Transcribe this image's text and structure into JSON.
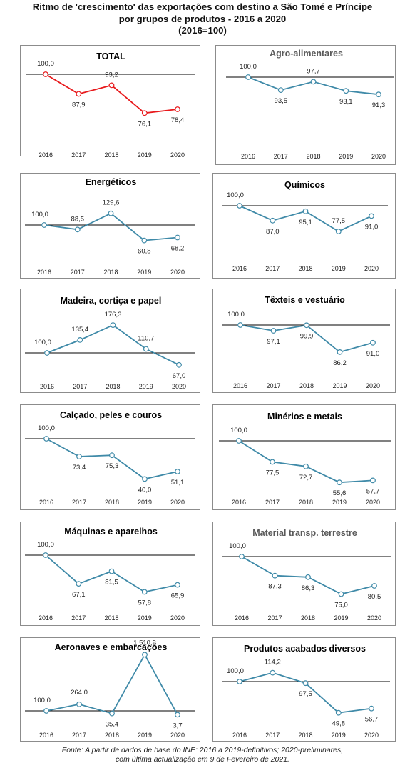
{
  "header": {
    "title_lines": [
      "Ritmo de 'crescimento' das exportações com destino a São Tomé e Príncipe",
      "por grupos de produtos - 2016 a 2020",
      "(2016=100)"
    ]
  },
  "footnote": {
    "lines": [
      "Fonte: A partir de dados de base do INE: 2016 a 2019-definitivos; 2020-preliminares,",
      "com última actualização em 9 de Fevereiro de 2021."
    ]
  },
  "colors": {
    "line_default": "#3f8aa8",
    "line_total": "#e8191c",
    "baseline": "#000000",
    "border": "#8c8c8c"
  },
  "chart_data": [
    {
      "type": "line",
      "title": "TOTAL",
      "categories": [
        "2016",
        "2017",
        "2018",
        "2019",
        "2020"
      ],
      "values": [
        100,
        87.9,
        93.2,
        76.1,
        78.4
      ],
      "labels": [
        "100,0",
        "87,9",
        "93,2",
        "76,1",
        "78,4"
      ],
      "baseline": 100,
      "color": "#e8191c"
    },
    {
      "type": "line",
      "title": "Agro-alimentares",
      "categories": [
        "2016",
        "2017",
        "2018",
        "2019",
        "2020"
      ],
      "values": [
        100,
        93.5,
        97.7,
        93.1,
        91.3
      ],
      "labels": [
        "100,0",
        "93,5",
        "97,7",
        "93,1",
        "91,3"
      ],
      "baseline": 100,
      "color": "#3f8aa8"
    },
    {
      "type": "line",
      "title": "Energéticos",
      "categories": [
        "2016",
        "2017",
        "2018",
        "2019",
        "2020"
      ],
      "values": [
        100,
        88.5,
        129.6,
        60.8,
        68.2
      ],
      "labels": [
        "100,0",
        "88,5",
        "129,6",
        "60,8",
        "68,2"
      ],
      "baseline": 100,
      "color": "#3f8aa8"
    },
    {
      "type": "line",
      "title": "Químicos",
      "categories": [
        "2016",
        "2017",
        "2018",
        "2019",
        "2020"
      ],
      "values": [
        100,
        87.0,
        95.1,
        77.5,
        91.0
      ],
      "labels": [
        "100,0",
        "87,0",
        "95,1",
        "77,5",
        "91,0"
      ],
      "baseline": 100,
      "color": "#3f8aa8"
    },
    {
      "type": "line",
      "title": "Madeira, cortiça e papel",
      "categories": [
        "2016",
        "2017",
        "2018",
        "2019",
        "2020"
      ],
      "values": [
        100,
        135.4,
        176.3,
        110.7,
        67.0
      ],
      "labels": [
        "100,0",
        "135,4",
        "176,3",
        "110,7",
        "67,0"
      ],
      "baseline": 100,
      "color": "#3f8aa8"
    },
    {
      "type": "line",
      "title": "Têxteis e vestuário",
      "categories": [
        "2016",
        "2017",
        "2018",
        "2019",
        "2020"
      ],
      "values": [
        100,
        97.1,
        99.9,
        86.2,
        91.0
      ],
      "labels": [
        "100,0",
        "97,1",
        "99,9",
        "86,2",
        "91,0"
      ],
      "baseline": 100,
      "color": "#3f8aa8"
    },
    {
      "type": "line",
      "title": "Calçado, peles e couros",
      "categories": [
        "2016",
        "2017",
        "2018",
        "2019",
        "2020"
      ],
      "values": [
        100,
        73.4,
        75.3,
        40.0,
        51.1
      ],
      "labels": [
        "100,0",
        "73,4",
        "75,3",
        "40,0",
        "51,1"
      ],
      "baseline": 100,
      "color": "#3f8aa8"
    },
    {
      "type": "line",
      "title": "Minérios e metais",
      "categories": [
        "2016",
        "2017",
        "2018",
        "2019",
        "2020"
      ],
      "values": [
        100,
        77.5,
        72.7,
        55.6,
        57.7
      ],
      "labels": [
        "100,0",
        "77,5",
        "72,7",
        "55,6",
        "57,7"
      ],
      "baseline": 100,
      "color": "#3f8aa8"
    },
    {
      "type": "line",
      "title": "Máquinas e aparelhos",
      "categories": [
        "2016",
        "2017",
        "2018",
        "2019",
        "2020"
      ],
      "values": [
        100,
        67.1,
        81.5,
        57.8,
        65.9
      ],
      "labels": [
        "100,0",
        "67,1",
        "81,5",
        "57,8",
        "65,9"
      ],
      "baseline": 100,
      "color": "#3f8aa8"
    },
    {
      "type": "line",
      "title": "Material transp. terrestre",
      "categories": [
        "2016",
        "2017",
        "2018",
        "2019",
        "2020"
      ],
      "values": [
        100,
        87.3,
        86.3,
        75.0,
        80.5
      ],
      "labels": [
        "100,0",
        "87,3",
        "86,3",
        "75,0",
        "80,5"
      ],
      "baseline": 100,
      "color": "#3f8aa8"
    },
    {
      "type": "line",
      "title": "Aeronaves e embarcações",
      "categories": [
        "2016",
        "2017",
        "2018",
        "2019",
        "2020"
      ],
      "values": [
        100,
        264.0,
        35.4,
        1510.8,
        3.7
      ],
      "labels": [
        "100,0",
        "264,0",
        "35,4",
        "1 510,8",
        "3,7"
      ],
      "baseline": 100,
      "color": "#3f8aa8"
    },
    {
      "type": "line",
      "title": "Produtos acabados diversos",
      "categories": [
        "2016",
        "2017",
        "2018",
        "2019",
        "2020"
      ],
      "values": [
        100,
        114.2,
        97.5,
        49.8,
        56.7
      ],
      "labels": [
        "100,0",
        "114,2",
        "97,5",
        "49,8",
        "56,7"
      ],
      "baseline": 100,
      "color": "#3f8aa8"
    }
  ]
}
